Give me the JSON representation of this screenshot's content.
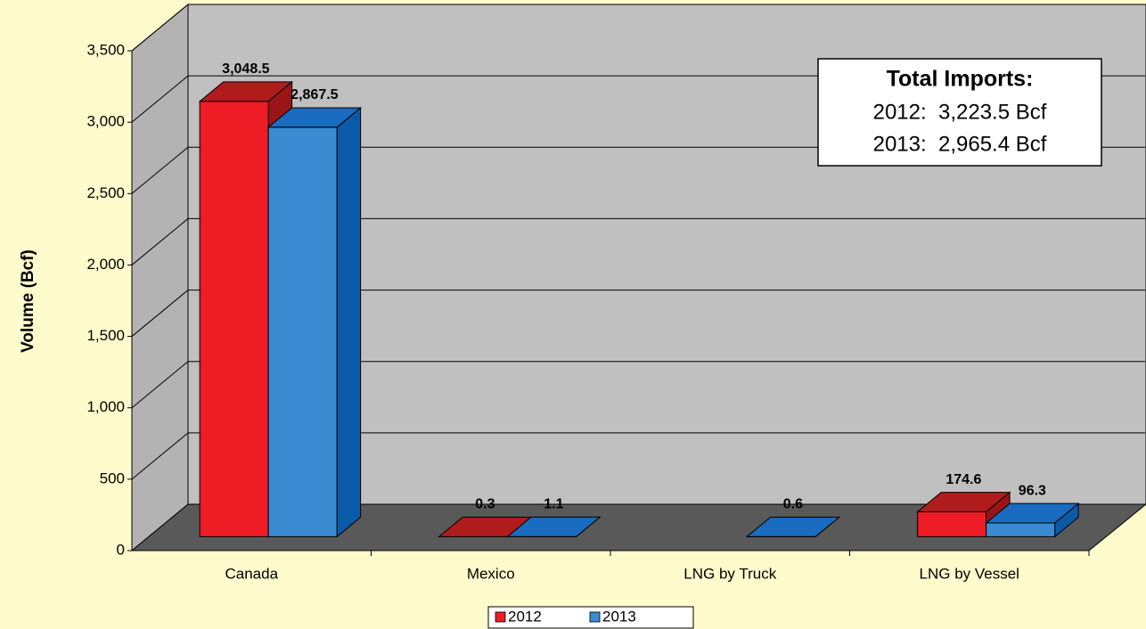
{
  "chart_data": {
    "type": "bar3d",
    "y_label": "Volume (Bcf)",
    "categories": [
      "Canada",
      "Mexico",
      "LNG by Truck",
      "LNG by Vessel"
    ],
    "series": [
      {
        "name": "2012",
        "color": "#ee1c25",
        "top_color": "#b01c1c",
        "side_color": "#9a1515",
        "values": [
          3048.5,
          0.3,
          null,
          174.6
        ],
        "value_labels": [
          "3,048.5",
          "0.3",
          null,
          "174.6"
        ]
      },
      {
        "name": "2013",
        "color": "#3a8bd2",
        "top_color": "#1a6cc0",
        "side_color": "#0b5aa8",
        "values": [
          2867.5,
          1.1,
          0.6,
          96.3
        ],
        "value_labels": [
          "2,867.5",
          "1.1",
          "0.6",
          "96.3"
        ]
      }
    ],
    "ylim": [
      0,
      3500
    ],
    "yticks": [
      0,
      500,
      {
        "value": 1000,
        "label": "1,000"
      },
      {
        "value": 1500,
        "label": "1,500"
      },
      {
        "value": 2000,
        "label": "2,000"
      },
      {
        "value": 2500,
        "label": "2,500"
      },
      {
        "value": 3000,
        "label": "3,000"
      },
      {
        "value": 3500,
        "label": "3,500"
      }
    ],
    "grid": true,
    "legend": "bottom",
    "annotation": {
      "title": "Total Imports:",
      "lines": [
        "2012:  3,223.5 Bcf",
        "2013:  2,965.4 Bcf"
      ]
    }
  }
}
